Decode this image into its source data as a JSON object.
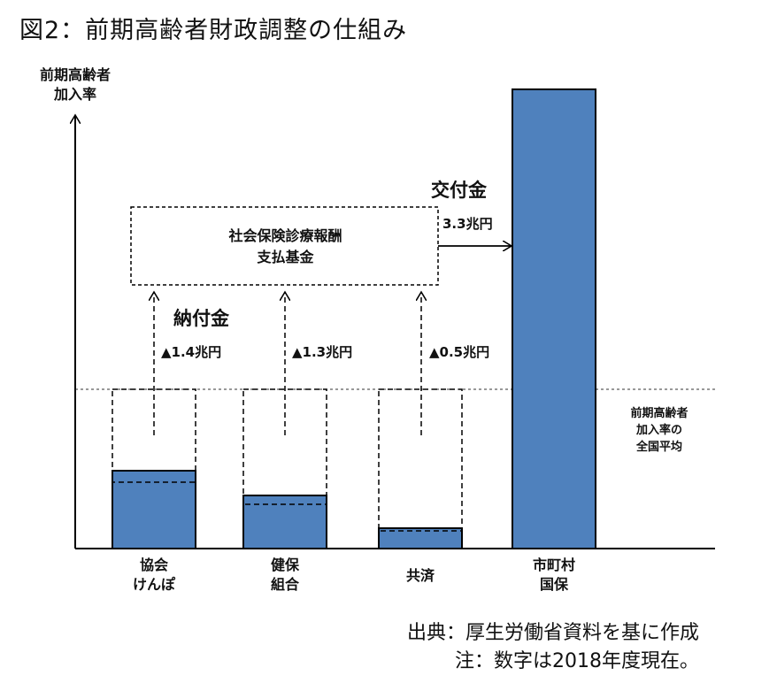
{
  "title": "図2：前期高齢者財政調整の仕組み",
  "y_axis_label": [
    "前期高齢者",
    "加入率"
  ],
  "average_line_label": [
    "前期高齢者",
    "加入率の",
    "全国平均"
  ],
  "fund_box": [
    "社会保険診療報酬",
    "支払基金"
  ],
  "contributions_label": "納付金",
  "grant_label": "交付金",
  "grant_amount": "3.3兆円",
  "colors": {
    "bar": "#4f81bd",
    "bar_stroke": "#000000",
    "line": "#000000"
  },
  "categories": [
    {
      "label": [
        "協会",
        "けんぽ"
      ],
      "level": 0.17,
      "contribution": "▲1.4兆円"
    },
    {
      "label": [
        "健保",
        "組合"
      ],
      "level": 0.115,
      "contribution": "▲1.3兆円"
    },
    {
      "label": [
        "共済"
      ],
      "level": 0.045,
      "contribution": "▲0.5兆円"
    },
    {
      "label": [
        "市町村",
        "国保"
      ],
      "level": 1.0,
      "contribution": ""
    }
  ],
  "source": [
    "出典：厚生労働省資料を基に作成",
    "注：数字は2018年度現在。"
  ]
}
